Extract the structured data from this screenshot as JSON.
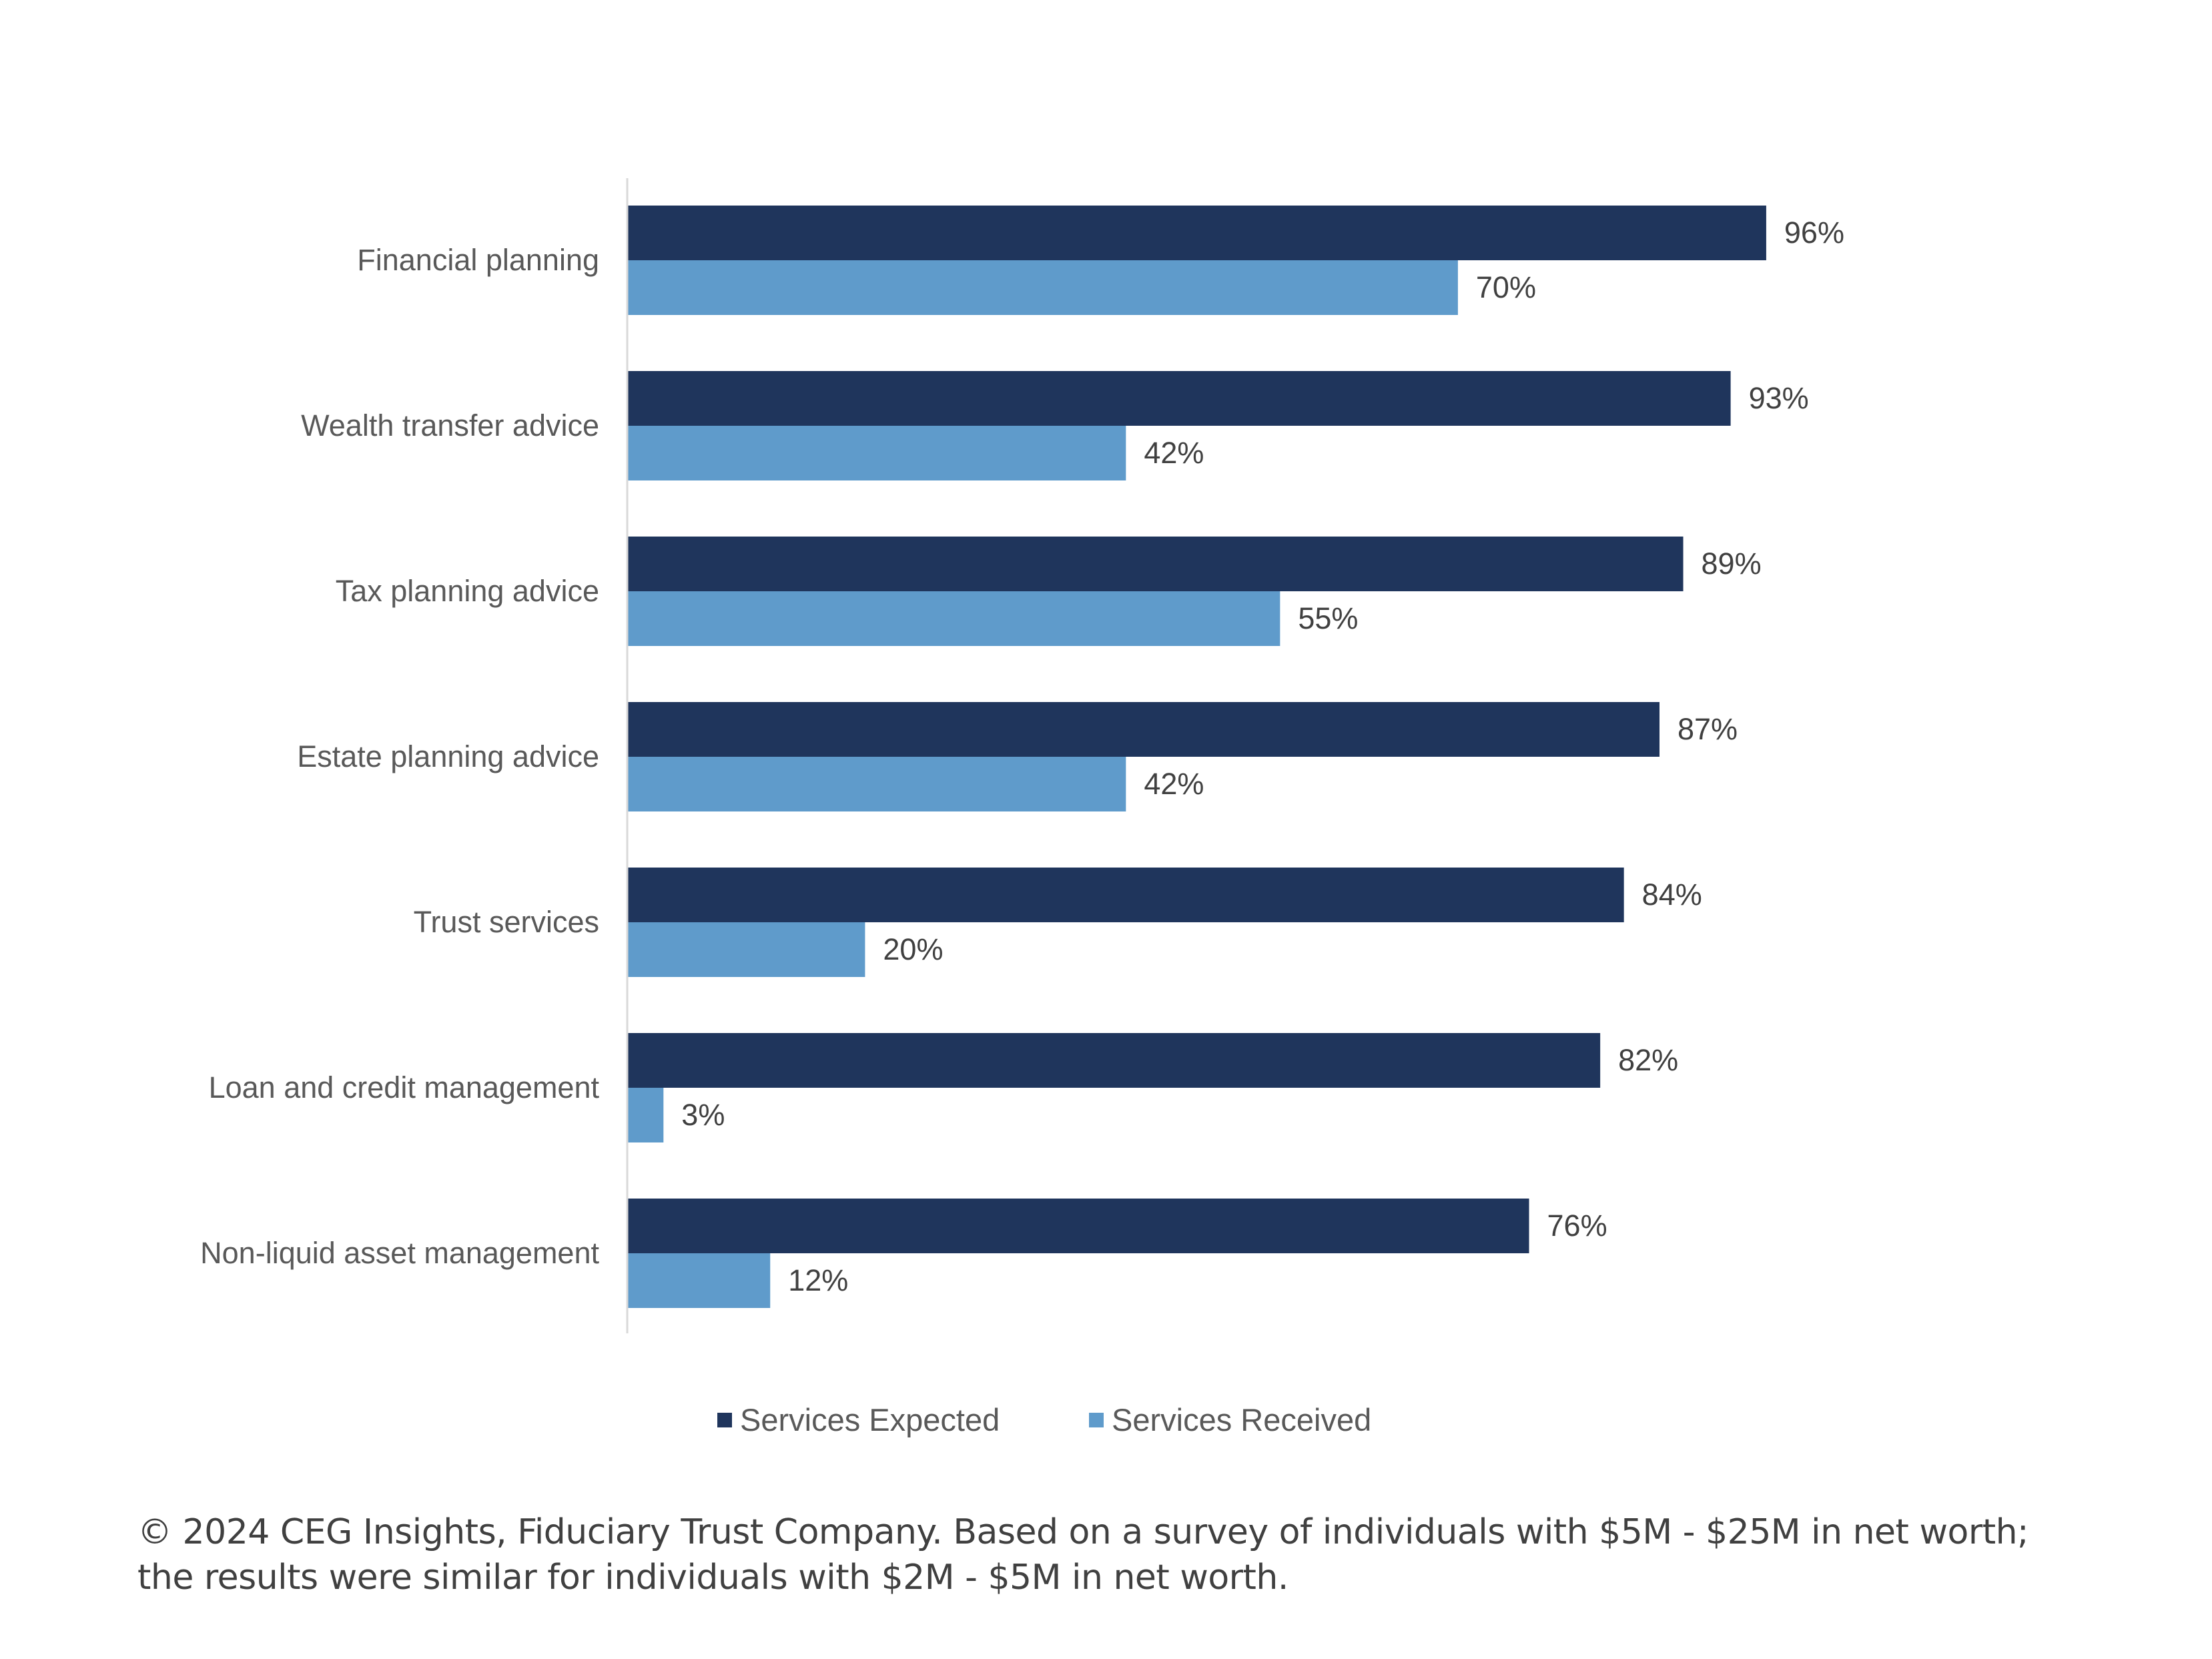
{
  "chart_data": {
    "type": "bar",
    "orientation": "horizontal",
    "title": "",
    "xlabel": "",
    "ylabel": "",
    "xlim": [
      0,
      100
    ],
    "grid": false,
    "legend_position": "bottom",
    "categories": [
      "Financial planning",
      "Wealth transfer advice",
      "Tax planning advice",
      "Estate planning advice",
      "Trust services",
      "Loan and credit management",
      "Non-liquid asset management"
    ],
    "series": [
      {
        "name": "Services Expected",
        "color": "#1f355c",
        "values": [
          96,
          93,
          89,
          87,
          84,
          82,
          76
        ],
        "labels": [
          "96%",
          "93%",
          "89%",
          "87%",
          "84%",
          "82%",
          "76%"
        ]
      },
      {
        "name": "Services Received",
        "color": "#5f9bcb",
        "values": [
          70,
          42,
          55,
          42,
          20,
          3,
          12
        ],
        "labels": [
          "70%",
          "42%",
          "55%",
          "42%",
          "20%",
          "3%",
          "12%"
        ]
      }
    ]
  },
  "legend": {
    "items": [
      {
        "label": "Services Expected",
        "color": "#1f355c"
      },
      {
        "label": "Services Received",
        "color": "#5f9bcb"
      }
    ]
  },
  "footer": {
    "line1": "© 2024 CEG Insights, Fiduciary Trust Company. Based on a survey of individuals with $5M - $25M in net worth;",
    "line2": "the results were similar for individuals with $2M - $5M in net worth."
  }
}
